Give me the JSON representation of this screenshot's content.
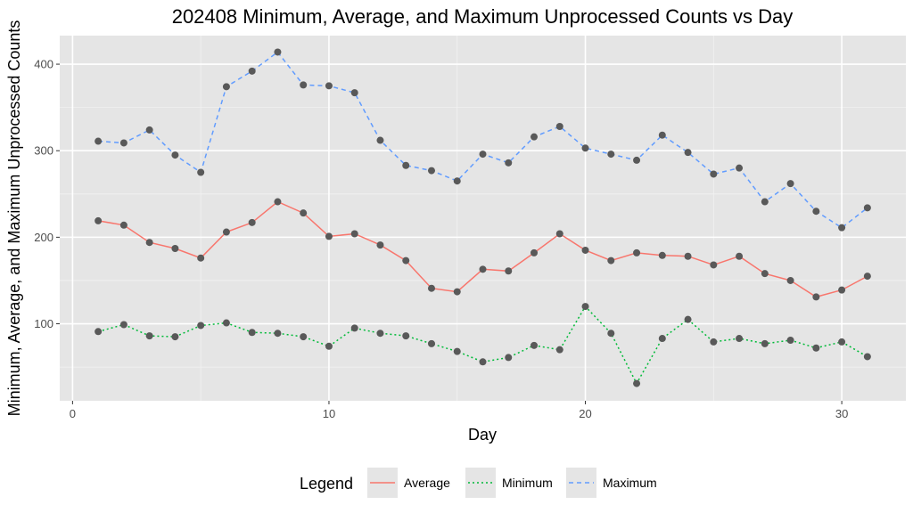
{
  "chart_data": {
    "type": "line",
    "title": "202408 Minimum, Average, and Maximum Unprocessed Counts vs Day",
    "xlabel": "Day",
    "ylabel": "Minimum, Average, and Maximum Unprocessed Counts",
    "xlim": [
      -0.5,
      32.5
    ],
    "ylim": [
      11,
      433
    ],
    "x_ticks": [
      0,
      10,
      20,
      30
    ],
    "y_ticks": [
      100,
      200,
      300,
      400
    ],
    "grid": true,
    "background": "#e5e5e5",
    "legend_position": "bottom",
    "legend_title": "Legend",
    "point_color": "#595959",
    "x": [
      1,
      2,
      3,
      4,
      5,
      6,
      7,
      8,
      9,
      10,
      11,
      12,
      13,
      14,
      15,
      16,
      17,
      18,
      19,
      20,
      21,
      22,
      23,
      24,
      25,
      26,
      27,
      28,
      29,
      30,
      31
    ],
    "series": [
      {
        "name": "Average",
        "color": "#f8766d",
        "dash": "solid",
        "values": [
          219,
          214,
          194,
          187,
          176,
          206,
          217,
          241,
          228,
          201,
          204,
          191,
          173,
          141,
          137,
          163,
          161,
          182,
          204,
          185,
          173,
          182,
          179,
          178,
          168,
          178,
          158,
          150,
          131,
          139,
          155
        ]
      },
      {
        "name": "Minimum",
        "color": "#00ba38",
        "dash": "dotted",
        "values": [
          91,
          99,
          86,
          85,
          98,
          101,
          90,
          89,
          85,
          74,
          95,
          89,
          86,
          77,
          68,
          56,
          61,
          75,
          70,
          120,
          89,
          31,
          83,
          105,
          79,
          83,
          77,
          81,
          72,
          79,
          62
        ]
      },
      {
        "name": "Maximum",
        "color": "#619cff",
        "dash": "dashed",
        "values": [
          311,
          309,
          324,
          295,
          275,
          374,
          392,
          414,
          376,
          375,
          367,
          312,
          283,
          277,
          265,
          296,
          286,
          316,
          328,
          303,
          296,
          289,
          318,
          298,
          273,
          280,
          241,
          262,
          230,
          211,
          234
        ]
      }
    ]
  }
}
